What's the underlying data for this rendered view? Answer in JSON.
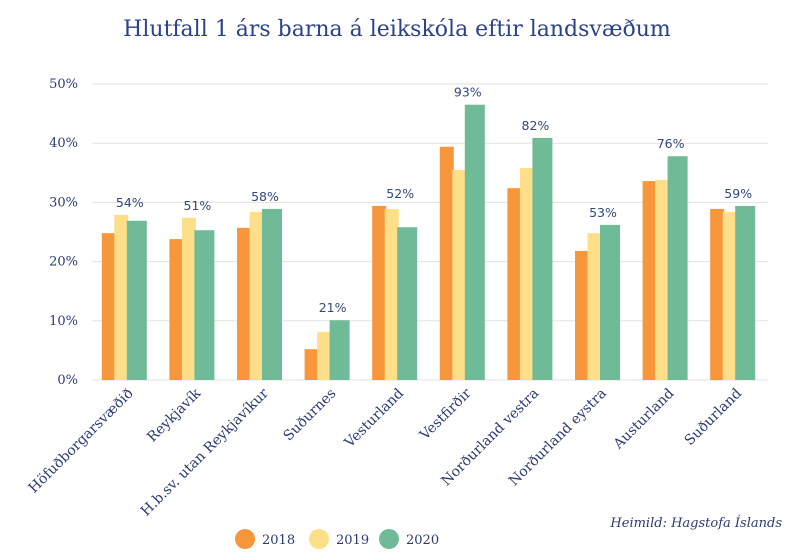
{
  "chart_data": {
    "type": "bar",
    "title": "Hlutfall 1 árs barna á leikskóla eftir landsvæðum",
    "xlabel": "",
    "ylabel": "",
    "ylim": [
      0,
      50
    ],
    "yticks": [
      0,
      10,
      20,
      30,
      40,
      50
    ],
    "ytick_labels": [
      "0%",
      "10%",
      "20%",
      "30%",
      "40%",
      "50%"
    ],
    "grid": true,
    "categories": [
      "Höfuðborgarsvæðið",
      "Reykjavík",
      "H.b.sv. utan Reykjavíkur",
      "Suðurnes",
      "Vesturland",
      "Vestfirðir",
      "Norðurland vestra",
      "Norðurland eystra",
      "Austurland",
      "Suðurland"
    ],
    "series": [
      {
        "name": "2018",
        "color": "#f7963b",
        "values": [
          24.8,
          23.8,
          25.7,
          5.2,
          29.4,
          39.4,
          32.4,
          21.8,
          33.6,
          28.9
        ]
      },
      {
        "name": "2019",
        "color": "#fcdf88",
        "values": [
          27.9,
          27.4,
          28.4,
          8.1,
          28.9,
          35.5,
          35.8,
          24.8,
          33.8,
          28.4
        ]
      },
      {
        "name": "2020",
        "color": "#6fbb97",
        "values": [
          26.9,
          25.3,
          28.9,
          10.1,
          25.8,
          46.5,
          40.9,
          26.2,
          37.8,
          29.4
        ]
      }
    ],
    "group_labels": [
      "54%",
      "51%",
      "58%",
      "21%",
      "52%",
      "93%",
      "82%",
      "53%",
      "76%",
      "59%"
    ],
    "legend": {
      "position": "bottom-center",
      "entries": [
        "2018",
        "2019",
        "2020"
      ]
    },
    "source_note": "Heimild: Hagstofa Íslands"
  }
}
